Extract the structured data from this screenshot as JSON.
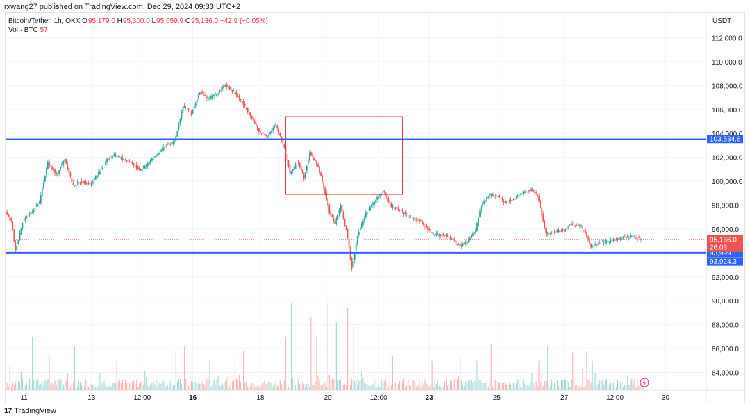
{
  "header": {
    "published": "rxwang27 published on TradingView.com, Dec 29, 2024 09:33 UTC+2"
  },
  "legend": {
    "symbol": "Bitcoin/Tether, 1h, OKX",
    "o_label": "O",
    "o_value": "95,179.0",
    "h_label": "H",
    "h_value": "95,300.0",
    "l_label": "L",
    "l_value": "95,059.9",
    "c_label": "C",
    "c_value": "95,136.0",
    "change": "−42.9 (−0.05%)",
    "vol_label": "Vol · BTC",
    "vol_value": "57"
  },
  "footer": {
    "brand": "TradingView"
  },
  "colors": {
    "up": "#26a69a",
    "down": "#ef5350",
    "line": "#2962ff",
    "box": "#f23645",
    "grid": "#f0f3fa"
  },
  "chart_data": {
    "type": "candlestick",
    "currency": "USDT",
    "ylim": [
      82800,
      113800
    ],
    "y_ticks": [
      "84,000.0",
      "86,000.0",
      "88,000.0",
      "90,000.0",
      "92,000.0",
      "94,000.0",
      "96,000.0",
      "98,000.0",
      "100,000.0",
      "102,000.0",
      "104,000.0",
      "106,000.0",
      "108,000.0",
      "110,000.0",
      "112,000.0"
    ],
    "y_tick_values": [
      84000,
      86000,
      88000,
      90000,
      92000,
      94000,
      96000,
      98000,
      100000,
      102000,
      104000,
      106000,
      108000,
      110000,
      112000
    ],
    "x_labels": [
      {
        "label": "11",
        "hours": 0,
        "bold": false
      },
      {
        "label": "13",
        "hours": 48,
        "bold": false
      },
      {
        "label": "12:00",
        "hours": 84,
        "bold": false
      },
      {
        "label": "16",
        "hours": 120,
        "bold": true
      },
      {
        "label": "18",
        "hours": 168,
        "bold": false
      },
      {
        "label": "20",
        "hours": 216,
        "bold": false
      },
      {
        "label": "12:00",
        "hours": 252,
        "bold": false
      },
      {
        "label": "23",
        "hours": 288,
        "bold": true
      },
      {
        "label": "25",
        "hours": 336,
        "bold": false
      },
      {
        "label": "27",
        "hours": 384,
        "bold": false
      },
      {
        "label": "12:00",
        "hours": 420,
        "bold": false
      },
      {
        "label": "30",
        "hours": 456,
        "bold": false
      }
    ],
    "price_keypoints": [
      [
        -12,
        97400
      ],
      [
        -8,
        96600
      ],
      [
        -5,
        94200
      ],
      [
        0,
        96600
      ],
      [
        6,
        97400
      ],
      [
        12,
        98200
      ],
      [
        18,
        101600
      ],
      [
        24,
        100500
      ],
      [
        30,
        101900
      ],
      [
        36,
        99600
      ],
      [
        42,
        100000
      ],
      [
        48,
        99700
      ],
      [
        54,
        100700
      ],
      [
        60,
        101800
      ],
      [
        66,
        102200
      ],
      [
        72,
        101800
      ],
      [
        78,
        101500
      ],
      [
        84,
        100900
      ],
      [
        90,
        101600
      ],
      [
        96,
        102300
      ],
      [
        102,
        103000
      ],
      [
        108,
        103300
      ],
      [
        114,
        106300
      ],
      [
        120,
        105700
      ],
      [
        126,
        107500
      ],
      [
        132,
        106900
      ],
      [
        138,
        107300
      ],
      [
        144,
        108100
      ],
      [
        150,
        107500
      ],
      [
        156,
        106600
      ],
      [
        162,
        105500
      ],
      [
        168,
        104100
      ],
      [
        174,
        103800
      ],
      [
        180,
        104700
      ],
      [
        186,
        102900
      ],
      [
        190,
        100700
      ],
      [
        196,
        101600
      ],
      [
        200,
        100300
      ],
      [
        204,
        102400
      ],
      [
        210,
        101200
      ],
      [
        214,
        99500
      ],
      [
        218,
        97400
      ],
      [
        222,
        96500
      ],
      [
        226,
        97900
      ],
      [
        230,
        95900
      ],
      [
        234,
        92700
      ],
      [
        238,
        95500
      ],
      [
        244,
        97300
      ],
      [
        250,
        98300
      ],
      [
        256,
        99200
      ],
      [
        262,
        97900
      ],
      [
        268,
        97600
      ],
      [
        274,
        97100
      ],
      [
        280,
        96800
      ],
      [
        286,
        96300
      ],
      [
        292,
        95500
      ],
      [
        298,
        95500
      ],
      [
        304,
        95300
      ],
      [
        310,
        94600
      ],
      [
        316,
        94900
      ],
      [
        322,
        95900
      ],
      [
        326,
        98000
      ],
      [
        332,
        98900
      ],
      [
        338,
        98700
      ],
      [
        344,
        98200
      ],
      [
        350,
        98600
      ],
      [
        356,
        99100
      ],
      [
        362,
        99300
      ],
      [
        366,
        98800
      ],
      [
        372,
        95600
      ],
      [
        378,
        95800
      ],
      [
        384,
        95900
      ],
      [
        390,
        96400
      ],
      [
        396,
        96300
      ],
      [
        400,
        95700
      ],
      [
        404,
        94500
      ],
      [
        410,
        94800
      ],
      [
        416,
        95000
      ],
      [
        424,
        95200
      ],
      [
        432,
        95400
      ],
      [
        440,
        95136
      ]
    ],
    "last_hour": 440,
    "hours_range": [
      -12,
      480
    ],
    "horizontal_lines": [
      {
        "price": 103534.6,
        "label": "103,534.6",
        "weight": "thin"
      },
      {
        "price": 94000,
        "label": "93,999.1",
        "weight": "thick"
      }
    ],
    "last_price": {
      "price": 95136.0,
      "label": "95,136.0",
      "countdown": "26:03"
    },
    "extra_label": {
      "price": 93924.3,
      "label": "93,924.3"
    },
    "rectangle": {
      "h1": 186,
      "h2": 269,
      "p1": 98900,
      "p2": 105400
    },
    "volume_spikes": [
      [
        -10,
        0.25
      ],
      [
        6,
        0.55
      ],
      [
        18,
        0.35
      ],
      [
        36,
        0.45
      ],
      [
        66,
        0.3
      ],
      [
        108,
        0.4
      ],
      [
        114,
        0.45
      ],
      [
        132,
        0.3
      ],
      [
        150,
        0.35
      ],
      [
        156,
        0.4
      ],
      [
        186,
        0.55
      ],
      [
        190,
        0.9
      ],
      [
        204,
        0.75
      ],
      [
        208,
        0.55
      ],
      [
        216,
        0.9
      ],
      [
        222,
        0.7
      ],
      [
        230,
        0.85
      ],
      [
        234,
        0.65
      ],
      [
        262,
        0.35
      ],
      [
        290,
        0.3
      ],
      [
        310,
        0.35
      ],
      [
        322,
        0.3
      ],
      [
        332,
        0.35
      ],
      [
        366,
        0.3
      ],
      [
        372,
        0.45
      ],
      [
        390,
        0.3
      ],
      [
        400,
        0.4
      ],
      [
        404,
        0.3
      ]
    ]
  }
}
